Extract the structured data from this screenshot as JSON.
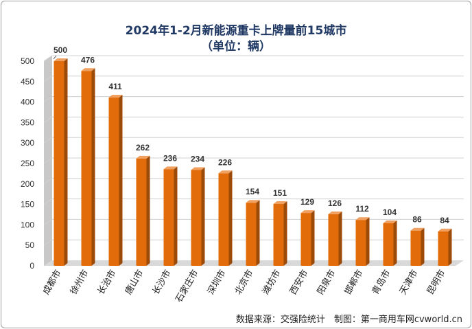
{
  "chart_data": {
    "type": "bar",
    "title": "2024年1-2月新能源重卡上牌量前15城市",
    "subtitle": "（单位：辆）",
    "categories": [
      "成都市",
      "徐州市",
      "长治市",
      "唐山市",
      "长沙市",
      "石家庄市",
      "深圳市",
      "北京市",
      "潍坊市",
      "西安市",
      "阳泉市",
      "邯郸市",
      "青岛市",
      "天津市",
      "昆明市"
    ],
    "values": [
      500,
      476,
      411,
      262,
      236,
      234,
      226,
      154,
      151,
      129,
      126,
      112,
      104,
      86,
      84
    ],
    "yticks": [
      "0",
      "50",
      "100",
      "150",
      "200",
      "250",
      "300",
      "350",
      "400",
      "450",
      "500"
    ],
    "ylim": [
      0,
      500
    ],
    "grid": true,
    "bar_color": "#e36c0a",
    "source": "数据来源：交强险统计　制图：第一商用车网cvworld.cn"
  }
}
